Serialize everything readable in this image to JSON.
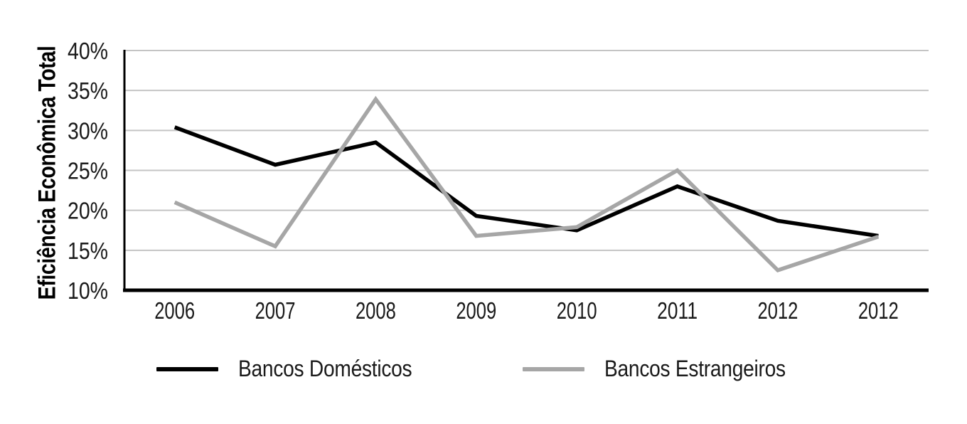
{
  "page": {
    "background": "#ffffff"
  },
  "chart_data": {
    "type": "line",
    "title": "",
    "xlabel": "",
    "ylabel": "Eficiência Econômica Total",
    "categories": [
      "2006",
      "2007",
      "2008",
      "2009",
      "2010",
      "2011",
      "2012",
      "2012"
    ],
    "y_ticks": [
      "40%",
      "35%",
      "30%",
      "25%",
      "20%",
      "15%",
      "10%"
    ],
    "y_tick_values": [
      40,
      35,
      30,
      25,
      20,
      15,
      10
    ],
    "ylim": [
      10,
      40
    ],
    "grid": true,
    "legend_position": "bottom",
    "series": [
      {
        "name": "Bancos Domésticos",
        "color": "#000000",
        "values": [
          30.4,
          25.7,
          28.5,
          19.3,
          17.5,
          23.0,
          18.7,
          16.8
        ]
      },
      {
        "name": "Bancos Estrangeiros",
        "color": "#a6a6a6",
        "values": [
          21.0,
          15.5,
          33.9,
          16.8,
          17.9,
          25.0,
          12.5,
          16.7
        ]
      }
    ]
  },
  "colors": {
    "gridline": "#c4c4c4",
    "axis": "#000000",
    "tick_text": "#1a1a1a"
  }
}
